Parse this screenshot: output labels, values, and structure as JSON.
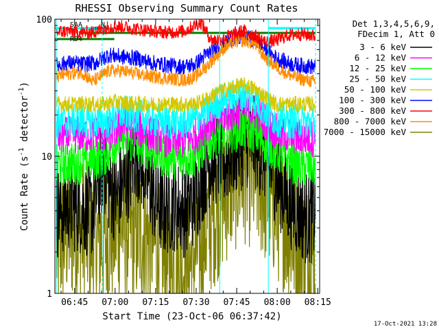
{
  "chart_data": {
    "type": "line",
    "title": "RHESSI Observing Summary Count Rates",
    "xlabel": "Start Time (23-Oct-06 06:37:42)",
    "ylabel": "Count Rate (s⁻¹ detector⁻¹)",
    "ylabel_parts": [
      "Count Rate (s",
      "-1",
      " detector",
      "-1",
      ")"
    ],
    "y_scale": "log",
    "ylim": [
      1,
      100
    ],
    "xlim_minutes": [
      0,
      98
    ],
    "x_ticks": [
      {
        "label": "06:45",
        "min": 7.3
      },
      {
        "label": "07:00",
        "min": 22.3
      },
      {
        "label": "07:15",
        "min": 37.3
      },
      {
        "label": "07:30",
        "min": 52.3
      },
      {
        "label": "07:45",
        "min": 67.3
      },
      {
        "label": "08:00",
        "min": 82.3
      },
      {
        "label": "08:15",
        "min": 97.3
      }
    ],
    "y_ticks": [
      {
        "label": "1",
        "value": 1
      },
      {
        "label": "10",
        "value": 10
      },
      {
        "label": "100",
        "value": 100
      }
    ],
    "legend_header": [
      "Det 1,3,4,5,6,9,",
      "FDecim 1, Att 0"
    ],
    "legend_position": "right",
    "series": [
      {
        "name": "3 - 6 keV",
        "color": "#000000"
      },
      {
        "name": "6 - 12 keV",
        "color": "#ff00ff"
      },
      {
        "name": "12 - 25 keV",
        "color": "#00ff00"
      },
      {
        "name": "25 - 50 keV",
        "color": "#00ffff"
      },
      {
        "name": "50 - 100 keV",
        "color": "#d4c800"
      },
      {
        "name": "100 - 300 keV",
        "color": "#0000ff"
      },
      {
        "name": "300 - 800 keV",
        "color": "#ff0000"
      },
      {
        "name": "800 - 7000 keV",
        "color": "#ff8c00"
      },
      {
        "name": "7000 - 15000 keV",
        "color": "#808000"
      }
    ],
    "series_curves": [
      {
        "color": "#808000",
        "amp": 0.55,
        "points": [
          [
            0,
            2.0
          ],
          [
            5,
            3.0
          ],
          [
            10,
            2.8
          ],
          [
            16,
            2.4
          ],
          [
            22,
            2.9
          ],
          [
            25,
            3.2
          ],
          [
            30,
            2.8
          ],
          [
            36,
            2.6
          ],
          [
            40,
            1.6
          ],
          [
            46,
            1.6
          ],
          [
            50,
            1.6
          ],
          [
            55,
            2.8
          ],
          [
            60,
            4.2
          ],
          [
            65,
            6.5
          ],
          [
            70,
            8.0
          ],
          [
            75,
            6.8
          ],
          [
            80,
            4.8
          ],
          [
            84,
            3.8
          ],
          [
            88,
            2.6
          ],
          [
            92,
            2.0
          ],
          [
            96,
            1.9
          ]
        ]
      },
      {
        "color": "#000000",
        "amp": 0.35,
        "points": [
          [
            0,
            3.8
          ],
          [
            5,
            4.5
          ],
          [
            10,
            4.2
          ],
          [
            14,
            4.0
          ],
          [
            18,
            9.0
          ],
          [
            20,
            6.0
          ],
          [
            23,
            5.0
          ],
          [
            28,
            8.0
          ],
          [
            30,
            11.0
          ],
          [
            33,
            8.0
          ],
          [
            37,
            5.0
          ],
          [
            40,
            4.0
          ],
          [
            44,
            4.5
          ],
          [
            48,
            4.0
          ],
          [
            52,
            5.0
          ],
          [
            55,
            7.5
          ],
          [
            58,
            10.0
          ],
          [
            62,
            9.0
          ],
          [
            66,
            11.0
          ],
          [
            70,
            13.0
          ],
          [
            74,
            12.5
          ],
          [
            78,
            10.0
          ],
          [
            82,
            7.0
          ],
          [
            86,
            5.0
          ],
          [
            90,
            4.0
          ],
          [
            94,
            3.5
          ],
          [
            96,
            3.8
          ]
        ]
      },
      {
        "color": "#00ff00",
        "amp": 0.16,
        "points": [
          [
            0,
            8.5
          ],
          [
            10,
            9.0
          ],
          [
            18,
            10.0
          ],
          [
            22,
            12.5
          ],
          [
            25,
            13.5
          ],
          [
            30,
            12.5
          ],
          [
            36,
            11.0
          ],
          [
            40,
            10.0
          ],
          [
            46,
            9.5
          ],
          [
            52,
            10.0
          ],
          [
            56,
            12.5
          ],
          [
            60,
            14.0
          ],
          [
            65,
            15.0
          ],
          [
            70,
            16.0
          ],
          [
            74,
            15.0
          ],
          [
            78,
            12.5
          ],
          [
            82,
            11.0
          ],
          [
            86,
            9.5
          ],
          [
            90,
            8.5
          ],
          [
            96,
            8.5
          ]
        ]
      },
      {
        "color": "#ff00ff",
        "amp": 0.14,
        "points": [
          [
            0,
            14.0
          ],
          [
            10,
            14.5
          ],
          [
            20,
            14.5
          ],
          [
            25,
            17.0
          ],
          [
            30,
            16.0
          ],
          [
            36,
            14.5
          ],
          [
            40,
            13.5
          ],
          [
            46,
            13.0
          ],
          [
            52,
            14.0
          ],
          [
            56,
            17.0
          ],
          [
            60,
            19.0
          ],
          [
            66,
            21.0
          ],
          [
            70,
            22.0
          ],
          [
            74,
            21.0
          ],
          [
            78,
            18.0
          ],
          [
            82,
            15.0
          ],
          [
            88,
            14.0
          ],
          [
            96,
            13.5
          ]
        ]
      },
      {
        "color": "#00ffff",
        "amp": 0.13,
        "points": [
          [
            0,
            18.0
          ],
          [
            10,
            18.0
          ],
          [
            20,
            18.0
          ],
          [
            25,
            21.0
          ],
          [
            30,
            20.0
          ],
          [
            36,
            18.5
          ],
          [
            40,
            18.0
          ],
          [
            46,
            17.5
          ],
          [
            52,
            18.5
          ],
          [
            56,
            21.0
          ],
          [
            60,
            25.0
          ],
          [
            66,
            27.0
          ],
          [
            70,
            28.0
          ],
          [
            74,
            26.0
          ],
          [
            78,
            21.0
          ],
          [
            82,
            18.5
          ],
          [
            88,
            18.0
          ],
          [
            96,
            17.5
          ]
        ]
      },
      {
        "color": "#d4c800",
        "amp": 0.06,
        "points": [
          [
            0,
            24.0
          ],
          [
            18,
            24.0
          ],
          [
            22,
            25.0
          ],
          [
            30,
            24.0
          ],
          [
            52,
            24.0
          ],
          [
            56,
            26.0
          ],
          [
            60,
            29.0
          ],
          [
            66,
            32.0
          ],
          [
            70,
            33.0
          ],
          [
            74,
            31.0
          ],
          [
            78,
            27.0
          ],
          [
            82,
            24.0
          ],
          [
            96,
            24.0
          ]
        ]
      },
      {
        "color": "#0000ff",
        "amp": 0.06,
        "points": [
          [
            0,
            46.0
          ],
          [
            5,
            48.0
          ],
          [
            10,
            47.0
          ],
          [
            15,
            48.0
          ],
          [
            20,
            55.0
          ],
          [
            25,
            53.0
          ],
          [
            30,
            52.0
          ],
          [
            36,
            48.0
          ],
          [
            42,
            46.0
          ],
          [
            48,
            45.0
          ],
          [
            52,
            47.0
          ],
          [
            56,
            55.0
          ],
          [
            62,
            65.0
          ],
          [
            66,
            72.0
          ],
          [
            70,
            74.0
          ],
          [
            74,
            71.0
          ],
          [
            78,
            60.0
          ],
          [
            82,
            52.0
          ],
          [
            86,
            48.0
          ],
          [
            90,
            46.0
          ],
          [
            96,
            45.0
          ]
        ]
      },
      {
        "color": "#ff8c00",
        "amp": 0.05,
        "points": [
          [
            0,
            38.0
          ],
          [
            5,
            40.0
          ],
          [
            10,
            41.0
          ],
          [
            14,
            35.0
          ],
          [
            20,
            42.0
          ],
          [
            25,
            42.0
          ],
          [
            30,
            40.0
          ],
          [
            36,
            38.0
          ],
          [
            42,
            37.0
          ],
          [
            48,
            36.0
          ],
          [
            52,
            38.0
          ],
          [
            56,
            45.0
          ],
          [
            62,
            60.0
          ],
          [
            66,
            68.0
          ],
          [
            70,
            70.0
          ],
          [
            74,
            66.0
          ],
          [
            78,
            52.0
          ],
          [
            82,
            45.0
          ],
          [
            86,
            40.0
          ],
          [
            90,
            37.0
          ],
          [
            96,
            35.0
          ]
        ]
      },
      {
        "color": "#ff0000",
        "amp": 0.05,
        "points": [
          [
            0,
            80.0
          ],
          [
            5,
            82.0
          ],
          [
            10,
            80.0
          ],
          [
            14,
            80.0
          ],
          [
            20,
            88.0
          ],
          [
            25,
            88.0
          ],
          [
            30,
            85.0
          ],
          [
            36,
            82.0
          ],
          [
            42,
            80.0
          ],
          [
            48,
            82.0
          ],
          [
            54,
            95.0
          ],
          [
            58,
            70.0
          ],
          [
            62,
            72.0
          ],
          [
            66,
            78.0
          ],
          [
            70,
            82.0
          ],
          [
            74,
            76.0
          ],
          [
            78,
            68.0
          ],
          [
            82,
            70.0
          ],
          [
            86,
            76.0
          ],
          [
            90,
            78.0
          ],
          [
            96,
            76.0
          ]
        ]
      }
    ],
    "flags": [
      {
        "name": "SAA",
        "color": "#00ffff",
        "from_min": 0,
        "to_min": 17.5
      },
      {
        "name": "N",
        "color": "#00ffff",
        "from_min": 17.0,
        "to_min": 22.0
      },
      {
        "name": "RD0",
        "color": "#008000",
        "from_min": 9.0,
        "to_min": 22.0
      },
      {
        "name": "RD4",
        "color": "#008000",
        "from_min": 0,
        "to_min": 22.0
      },
      {
        "name": "",
        "color": "#008000",
        "from_min": 22.0,
        "to_min": 61.0
      },
      {
        "name": "",
        "color": "#008000",
        "from_min": 61.0,
        "to_min": 96.5
      },
      {
        "name": "",
        "color": "#00ffff",
        "from_min": 79.0,
        "to_min": 96.5
      }
    ],
    "vertical_markers": [
      {
        "min": 0.5,
        "style": "solid"
      },
      {
        "min": 17.5,
        "style": "dashed"
      },
      {
        "min": 61.0,
        "style": "solid"
      },
      {
        "min": 79.0,
        "style": "solid"
      },
      {
        "min": 96.5,
        "style": "dashed"
      }
    ]
  },
  "footer": {
    "timestamp": "17-Oct-2021 13:28"
  }
}
